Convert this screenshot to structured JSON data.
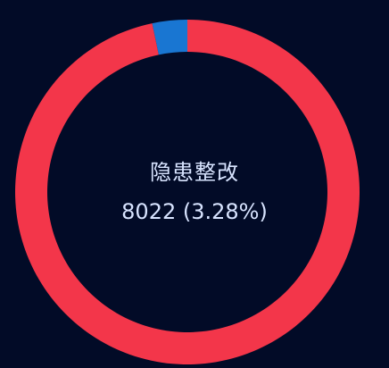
{
  "chart_data": {
    "type": "pie",
    "style": "donut",
    "center_label": "隐患整改",
    "center_value_text": "8022 (3.28%)",
    "series": [
      {
        "value": 3.28,
        "color": "#1976d2"
      },
      {
        "value": 96.72,
        "color": "#f3364a"
      }
    ]
  },
  "colors": {
    "background": "#020b27",
    "text": "#d8e4ff"
  }
}
